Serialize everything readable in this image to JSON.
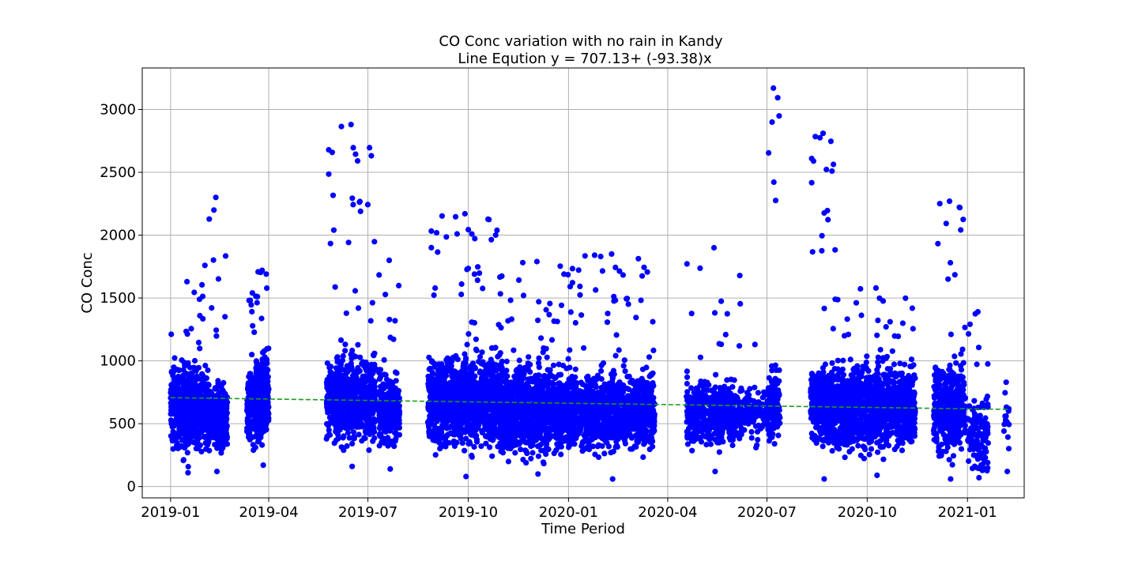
{
  "colors": {
    "points": "#0000ff",
    "trend": "#1a9a1a",
    "grid": "#b0b0b0",
    "axis": "#000000"
  },
  "chart_data": {
    "type": "scatter",
    "title": "CO Conc variation with no rain in Kandy",
    "subtitle": "Line Eqution y = 707.13+ (-93.38)x",
    "xlabel": "Time Period",
    "ylabel": "CO Conc",
    "x_is_date": true,
    "xlim": [
      "2018-12-06",
      "2021-02-22"
    ],
    "ylim": [
      -90,
      3330
    ],
    "x_ticks": [
      "2019-01",
      "2019-04",
      "2019-07",
      "2019-10",
      "2020-01",
      "2020-04",
      "2020-07",
      "2020-10",
      "2021-01"
    ],
    "y_ticks": [
      0,
      500,
      1000,
      1500,
      2000,
      2500,
      3000
    ],
    "grid": true,
    "legend": "none",
    "trend_line": {
      "style": "dashed",
      "intercept": 707.13,
      "slope": -93.38,
      "start": {
        "x": "2019-01-01",
        "y": 707
      },
      "end": {
        "x": "2021-02-08",
        "y": 614
      }
    },
    "series": [
      {
        "clusters": [
          {
            "start": "2019-01-01",
            "end": "2019-01-31",
            "base": 620,
            "spread": 300,
            "count": 520,
            "max": 1630,
            "min": 110
          },
          {
            "start": "2019-02-01",
            "end": "2019-02-22",
            "base": 560,
            "spread": 240,
            "count": 360,
            "max": 2300,
            "min": 120
          },
          {
            "start": "2019-03-12",
            "end": "2019-03-22",
            "base": 660,
            "spread": 260,
            "count": 200,
            "max": 1540,
            "min": 290
          },
          {
            "start": "2019-03-20",
            "end": "2019-04-01",
            "base": 700,
            "spread": 300,
            "count": 260,
            "max": 1720,
            "min": 170
          },
          {
            "start": "2019-05-24",
            "end": "2019-07-08",
            "base": 700,
            "spread": 300,
            "count": 700,
            "max": 2880,
            "min": 160
          },
          {
            "start": "2019-07-11",
            "end": "2019-07-30",
            "base": 600,
            "spread": 250,
            "count": 260,
            "max": 1800,
            "min": 140
          },
          {
            "start": "2019-08-25",
            "end": "2019-11-01",
            "base": 680,
            "spread": 320,
            "count": 1100,
            "max": 2170,
            "min": 80
          },
          {
            "start": "2019-10-31",
            "end": "2020-01-05",
            "base": 600,
            "spread": 300,
            "count": 1100,
            "max": 1790,
            "min": 100
          },
          {
            "start": "2020-01-01",
            "end": "2020-03-20",
            "base": 590,
            "spread": 260,
            "count": 1100,
            "max": 1850,
            "min": 60
          },
          {
            "start": "2020-04-18",
            "end": "2020-06-08",
            "base": 580,
            "spread": 220,
            "count": 520,
            "max": 1900,
            "min": 120
          },
          {
            "start": "2020-06-10",
            "end": "2020-06-30",
            "base": 600,
            "spread": 200,
            "count": 90,
            "max": 1130,
            "min": 310
          },
          {
            "start": "2020-07-01",
            "end": "2020-07-13",
            "base": 650,
            "spread": 250,
            "count": 140,
            "max": 3170,
            "min": 340
          },
          {
            "start": "2020-08-10",
            "end": "2020-09-02",
            "base": 640,
            "spread": 260,
            "count": 380,
            "max": 2810,
            "min": 60
          },
          {
            "start": "2020-09-03",
            "end": "2020-11-14",
            "base": 620,
            "spread": 290,
            "count": 1150,
            "max": 1580,
            "min": 90
          },
          {
            "start": "2020-12-01",
            "end": "2020-12-30",
            "base": 620,
            "spread": 330,
            "count": 380,
            "max": 2270,
            "min": 60
          },
          {
            "start": "2021-01-01",
            "end": "2021-01-20",
            "base": 420,
            "spread": 260,
            "count": 130,
            "max": 1390,
            "min": 70
          },
          {
            "start": "2021-02-03",
            "end": "2021-02-08",
            "base": 520,
            "spread": 250,
            "count": 14,
            "max": 830,
            "min": 120
          }
        ]
      }
    ]
  }
}
